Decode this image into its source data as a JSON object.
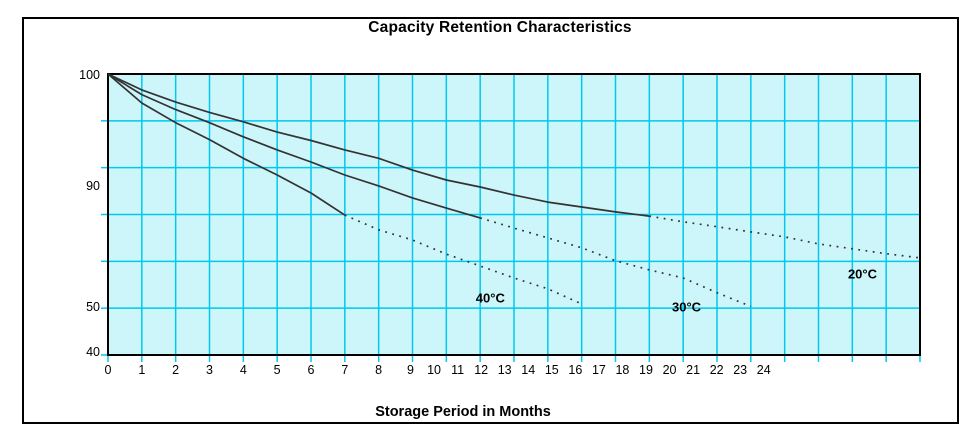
{
  "chart_data": {
    "type": "line",
    "title": "Capacity Retention Characteristics",
    "xlabel": "Storage Period in Months",
    "ylabel": "",
    "x_range": [
      0,
      24
    ],
    "x_tick_labels": [
      "0",
      "1",
      "2",
      "3",
      "4",
      "5",
      "6",
      "7",
      "8",
      "9",
      "10",
      "11",
      "12",
      "13",
      "14",
      "15",
      "16",
      "17",
      "18",
      "19",
      "20",
      "21",
      "22",
      "23",
      "24"
    ],
    "y_tick_labels": [
      "100",
      "90",
      "50",
      "40"
    ],
    "y_gridline_count": 7,
    "grid": true,
    "legend_position": "inline-labels",
    "colors": {
      "plot_background": "#cdf6fa",
      "gridline": "#00c8ee",
      "axis_border": "#000000",
      "curve": "#333333",
      "text": "#000000"
    },
    "series": [
      {
        "name": "20°C",
        "solid_until_month": 16,
        "line_style": "solid-then-dotted",
        "points": [
          [
            0,
            100
          ],
          [
            1,
            98.3
          ],
          [
            2,
            97.0
          ],
          [
            3,
            95.9
          ],
          [
            4,
            94.9
          ],
          [
            5,
            93.8
          ],
          [
            6,
            92.9
          ],
          [
            7,
            91.9
          ],
          [
            8,
            91.0
          ],
          [
            9,
            89.3
          ],
          [
            10,
            86.5
          ],
          [
            11,
            84.5
          ],
          [
            12,
            82.2
          ],
          [
            13,
            80.2
          ],
          [
            14,
            78.8
          ],
          [
            15,
            77.4
          ],
          [
            16,
            76.2
          ],
          [
            17,
            74.6
          ],
          [
            18,
            73.2
          ],
          [
            19,
            71.7
          ],
          [
            20,
            70.3
          ],
          [
            21,
            68.3
          ],
          [
            22,
            66.9
          ],
          [
            23,
            65.5
          ],
          [
            24,
            64.3
          ]
        ]
      },
      {
        "name": "30°C",
        "solid_until_month": 11,
        "line_style": "solid-then-dotted",
        "points": [
          [
            0,
            100
          ],
          [
            1,
            97.8
          ],
          [
            2,
            96.2
          ],
          [
            3,
            94.8
          ],
          [
            4,
            93.3
          ],
          [
            5,
            91.9
          ],
          [
            6,
            90.6
          ],
          [
            7,
            87.9
          ],
          [
            8,
            84.8
          ],
          [
            9,
            81.4
          ],
          [
            10,
            78.5
          ],
          [
            11,
            75.7
          ],
          [
            12,
            72.8
          ],
          [
            13,
            70.0
          ],
          [
            14,
            67.2
          ],
          [
            15,
            63.5
          ],
          [
            16,
            60.9
          ],
          [
            17,
            58.6
          ],
          [
            18,
            54.4
          ],
          [
            19,
            50.5
          ]
        ]
      },
      {
        "name": "40°C",
        "solid_until_month": 7,
        "line_style": "solid-then-dotted",
        "points": [
          [
            0,
            100
          ],
          [
            1,
            96.9
          ],
          [
            2,
            94.8
          ],
          [
            3,
            93.0
          ],
          [
            4,
            91.0
          ],
          [
            5,
            87.9
          ],
          [
            6,
            82.8
          ],
          [
            7,
            76.5
          ],
          [
            8,
            72.3
          ],
          [
            9,
            69.4
          ],
          [
            10,
            65.4
          ],
          [
            11,
            62.0
          ],
          [
            12,
            58.6
          ],
          [
            13,
            55.5
          ],
          [
            14,
            51.2
          ]
        ]
      }
    ],
    "annotations": [
      {
        "text": "40°C",
        "month": 11.3,
        "value": 52.9
      },
      {
        "text": "30°C",
        "month": 17.1,
        "value": 50.4
      },
      {
        "text": "20°C",
        "month": 22.3,
        "value": 59.8
      }
    ]
  }
}
